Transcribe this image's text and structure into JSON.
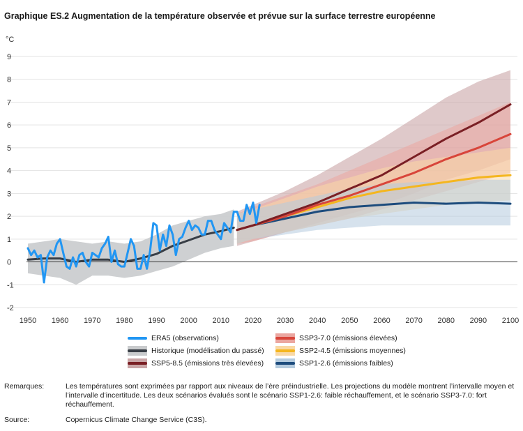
{
  "title": "Graphique ES.2  Augmentation de la température observée et prévue sur la surface terrestre européenne",
  "colors": {
    "era5": "#2196f3",
    "hist": "#383e46",
    "hist_band": "#c9cbcd",
    "ssp585": "#7a1f24",
    "ssp585_band": "#c9a5a6",
    "ssp370": "#d8453a",
    "ssp370_band": "#eba6a0",
    "ssp245": "#f4b61f",
    "ssp245_band": "#f9d9a6",
    "ssp126": "#1d4c7d",
    "ssp126_band": "#b4cbde",
    "zero_line": "#333333",
    "grid": "#e3e3e3"
  },
  "chart_data": {
    "type": "line",
    "title": "Graphique ES.2  Augmentation de la température observée et prévue sur la surface terrestre européenne",
    "ylabel": "°C",
    "xlabel": "",
    "xlim": [
      1950,
      2100
    ],
    "ylim": [
      -2,
      9
    ],
    "x_ticks": [
      1950,
      1960,
      1970,
      1980,
      1990,
      2000,
      2010,
      2020,
      2030,
      2040,
      2050,
      2060,
      2070,
      2080,
      2090,
      2100
    ],
    "y_ticks": [
      -2,
      -1,
      0,
      1,
      2,
      3,
      4,
      5,
      6,
      7,
      8,
      9
    ],
    "series": [
      {
        "name": "Historique (modélisation du passé)",
        "key": "hist",
        "x": [
          1950,
          1955,
          1960,
          1965,
          1970,
          1975,
          1980,
          1985,
          1990,
          1995,
          2000,
          2005,
          2010,
          2014
        ],
        "values": [
          0.1,
          0.15,
          0.15,
          0.0,
          0.1,
          0.1,
          0.0,
          0.15,
          0.35,
          0.7,
          0.95,
          1.2,
          1.35,
          1.5
        ],
        "lower": [
          -0.5,
          -0.6,
          -0.7,
          -1.0,
          -0.6,
          -0.6,
          -0.7,
          -0.6,
          -0.4,
          -0.2,
          0.1,
          0.4,
          0.6,
          0.7
        ],
        "upper": [
          0.8,
          0.9,
          1.0,
          0.9,
          0.8,
          0.9,
          0.8,
          0.9,
          1.2,
          1.6,
          1.8,
          2.0,
          2.1,
          2.3
        ]
      },
      {
        "name": "SSP5-8.5 (émissions très élevées)",
        "key": "ssp585",
        "x": [
          2015,
          2020,
          2030,
          2040,
          2050,
          2060,
          2070,
          2080,
          2090,
          2100
        ],
        "values": [
          1.4,
          1.6,
          2.1,
          2.6,
          3.2,
          3.8,
          4.6,
          5.4,
          6.1,
          6.9
        ],
        "lower": [
          0.7,
          0.9,
          1.3,
          1.7,
          2.1,
          2.5,
          3.0,
          3.6,
          4.0,
          4.5
        ],
        "upper": [
          2.2,
          2.5,
          3.1,
          3.8,
          4.6,
          5.4,
          6.3,
          7.2,
          7.9,
          8.4
        ]
      },
      {
        "name": "SSP3-7.0 (émissions élevées)",
        "key": "ssp370",
        "x": [
          2015,
          2020,
          2030,
          2040,
          2050,
          2060,
          2070,
          2080,
          2090,
          2100
        ],
        "values": [
          1.4,
          1.6,
          2.0,
          2.5,
          2.9,
          3.4,
          3.9,
          4.5,
          5.0,
          5.6
        ],
        "lower": [
          0.8,
          0.9,
          1.3,
          1.6,
          1.9,
          2.3,
          2.7,
          3.1,
          3.5,
          3.9
        ],
        "upper": [
          2.1,
          2.4,
          2.9,
          3.4,
          4.0,
          4.6,
          5.2,
          5.8,
          6.4,
          7.0
        ]
      },
      {
        "name": "SSP2-4.5 (émissions moyennes)",
        "key": "ssp245",
        "x": [
          2015,
          2020,
          2030,
          2040,
          2050,
          2060,
          2070,
          2080,
          2090,
          2100
        ],
        "values": [
          1.4,
          1.6,
          2.0,
          2.4,
          2.8,
          3.1,
          3.3,
          3.5,
          3.7,
          3.8
        ],
        "lower": [
          0.8,
          1.0,
          1.3,
          1.6,
          1.9,
          2.1,
          2.3,
          2.5,
          2.6,
          2.7
        ],
        "upper": [
          2.1,
          2.3,
          2.8,
          3.3,
          3.7,
          4.1,
          4.4,
          4.6,
          4.8,
          5.0
        ]
      },
      {
        "name": "SSP1-2.6 (émissions faibles)",
        "key": "ssp126",
        "x": [
          2015,
          2020,
          2030,
          2040,
          2050,
          2060,
          2070,
          2080,
          2090,
          2100
        ],
        "values": [
          1.4,
          1.6,
          1.9,
          2.2,
          2.4,
          2.5,
          2.6,
          2.55,
          2.6,
          2.55
        ],
        "lower": [
          0.8,
          1.0,
          1.2,
          1.4,
          1.5,
          1.6,
          1.6,
          1.6,
          1.6,
          1.6
        ],
        "upper": [
          2.1,
          2.3,
          2.6,
          2.9,
          3.2,
          3.4,
          3.5,
          3.5,
          3.6,
          3.6
        ]
      },
      {
        "name": "ERA5 (observations)",
        "key": "era5",
        "x": [
          1950,
          1951,
          1952,
          1953,
          1954,
          1955,
          1956,
          1957,
          1958,
          1959,
          1960,
          1961,
          1962,
          1963,
          1964,
          1965,
          1966,
          1967,
          1968,
          1969,
          1970,
          1971,
          1972,
          1973,
          1974,
          1975,
          1976,
          1977,
          1978,
          1979,
          1980,
          1981,
          1982,
          1983,
          1984,
          1985,
          1986,
          1987,
          1988,
          1989,
          1990,
          1991,
          1992,
          1993,
          1994,
          1995,
          1996,
          1997,
          1998,
          1999,
          2000,
          2001,
          2002,
          2003,
          2004,
          2005,
          2006,
          2007,
          2008,
          2009,
          2010,
          2011,
          2012,
          2013,
          2014,
          2015,
          2016,
          2017,
          2018,
          2019,
          2020,
          2021,
          2022
        ],
        "values": [
          0.6,
          0.3,
          0.5,
          0.2,
          0.3,
          -0.9,
          0.2,
          0.5,
          0.3,
          0.8,
          1.0,
          0.4,
          -0.2,
          -0.3,
          0.2,
          -0.2,
          0.3,
          0.4,
          0.0,
          -0.2,
          0.4,
          0.3,
          0.2,
          0.6,
          0.8,
          1.1,
          0.0,
          0.5,
          -0.1,
          -0.2,
          -0.2,
          0.4,
          1.0,
          0.7,
          -0.3,
          -0.3,
          0.3,
          -0.3,
          0.5,
          1.7,
          1.6,
          0.5,
          1.2,
          0.7,
          1.6,
          1.2,
          0.3,
          1.0,
          1.1,
          1.5,
          1.8,
          1.4,
          1.6,
          1.5,
          1.2,
          1.2,
          1.8,
          1.8,
          1.4,
          1.2,
          1.0,
          1.7,
          1.5,
          1.3,
          2.2,
          2.2,
          1.8,
          1.8,
          2.5,
          2.1,
          2.6,
          1.7,
          2.5
        ]
      }
    ],
    "legend": [
      {
        "key": "era5",
        "label": "ERA5 (observations)"
      },
      {
        "key": "hist",
        "label": "Historique (modélisation du passé)"
      },
      {
        "key": "ssp585",
        "label": "SSP5-8.5 (émissions très élevées)"
      },
      {
        "key": "ssp370",
        "label": "SSP3-7.0 (émissions élevées)"
      },
      {
        "key": "ssp245",
        "label": "SSP2-4.5 (émissions moyennes)"
      },
      {
        "key": "ssp126",
        "label": "SSP1-2.6 (émissions faibles)"
      }
    ]
  },
  "notes": {
    "remarks_label": "Remarques:",
    "remarks_text": "Les températures sont exprimées par rapport aux niveaux de l’ère préindustrielle. Les projections du modèle montrent l’intervalle moyen et l’intervalle d’incertitude. Les deux scénarios évalués sont le scénario SSP1-2.6: faible réchauffement, et le scénario SSP3-7.0: fort réchauffement.",
    "source_label": "Source:",
    "source_text": "Copernicus Climate Change Service (C3S)."
  }
}
